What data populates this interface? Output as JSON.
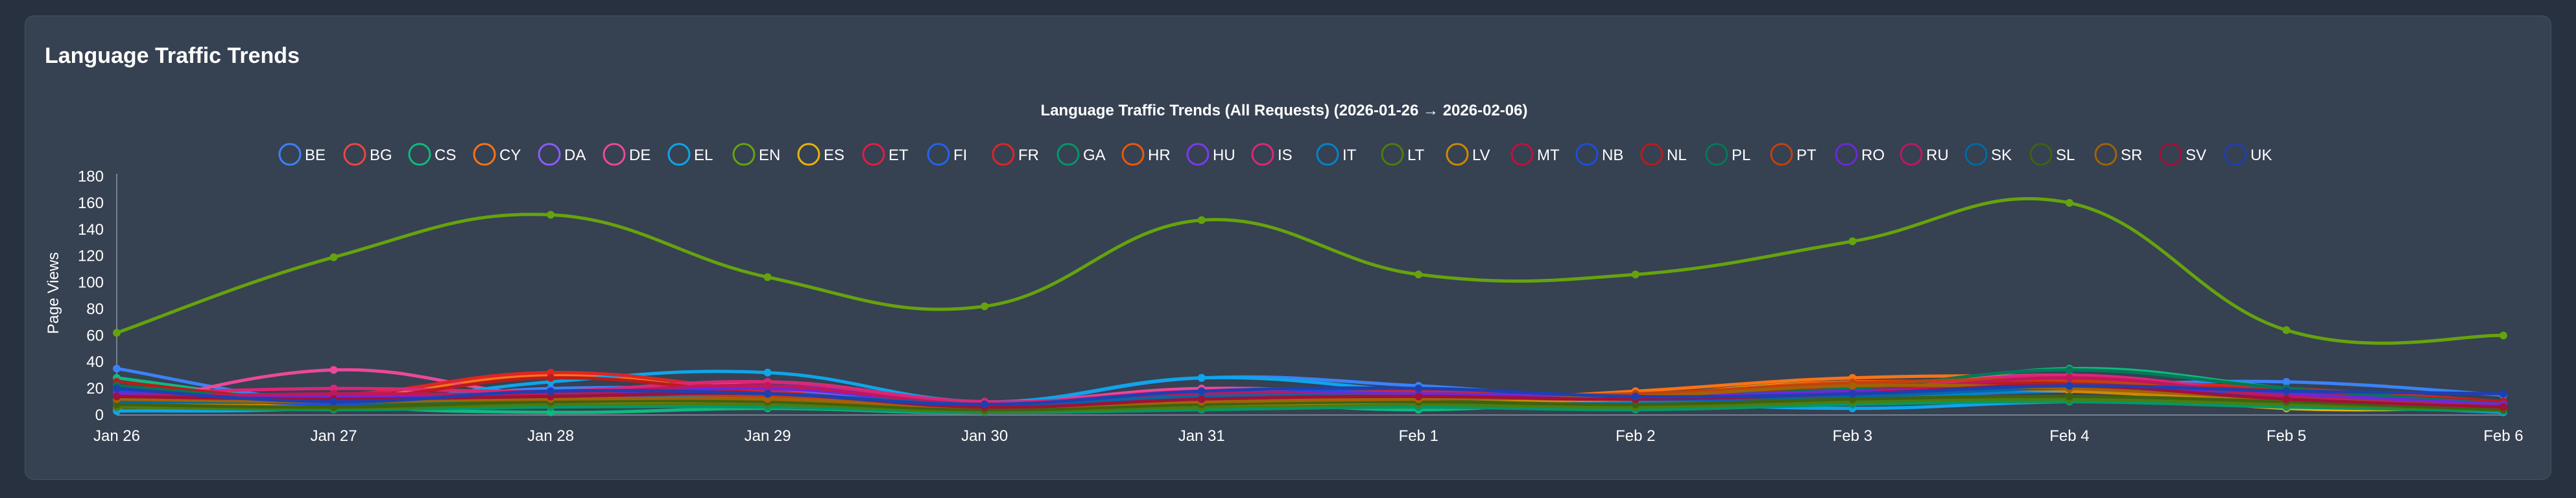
{
  "card": {
    "title": "Language Traffic Trends"
  },
  "chart_data": {
    "type": "line",
    "title": "Language Traffic Trends (All Requests) (2026-01-26 → 2026-02-06)",
    "xlabel": "",
    "ylabel": "Page Views",
    "ylim": [
      0,
      180
    ],
    "yticks": [
      0,
      20,
      40,
      60,
      80,
      100,
      120,
      140,
      160,
      180
    ],
    "grid": false,
    "legend_position": "top-center",
    "categories": [
      "Jan 26",
      "Jan 27",
      "Jan 28",
      "Jan 29",
      "Jan 30",
      "Jan 31",
      "Feb 1",
      "Feb 2",
      "Feb 3",
      "Feb 4",
      "Feb 5",
      "Feb 6"
    ],
    "series": [
      {
        "name": "BE",
        "color": "#3b82f6",
        "values": [
          35,
          10,
          20,
          18,
          8,
          28,
          22,
          12,
          18,
          22,
          25,
          15
        ]
      },
      {
        "name": "BG",
        "color": "#ef4444",
        "values": [
          10,
          8,
          12,
          6,
          5,
          10,
          8,
          6,
          10,
          12,
          8,
          4
        ]
      },
      {
        "name": "CS",
        "color": "#10b981",
        "values": [
          28,
          8,
          2,
          5,
          2,
          10,
          4,
          12,
          15,
          35,
          20,
          3
        ]
      },
      {
        "name": "CY",
        "color": "#f97316",
        "values": [
          18,
          12,
          30,
          15,
          8,
          12,
          10,
          18,
          28,
          28,
          18,
          8
        ]
      },
      {
        "name": "DA",
        "color": "#8b5cf6",
        "values": [
          12,
          10,
          15,
          20,
          6,
          14,
          12,
          10,
          12,
          18,
          12,
          6
        ]
      },
      {
        "name": "DE",
        "color": "#ec4899",
        "values": [
          5,
          34,
          15,
          25,
          10,
          20,
          15,
          10,
          20,
          30,
          15,
          5
        ]
      },
      {
        "name": "EL",
        "color": "#0ea5e9",
        "values": [
          3,
          6,
          25,
          32,
          10,
          28,
          18,
          10,
          5,
          10,
          8,
          2
        ]
      },
      {
        "name": "EN",
        "color": "#65a30d",
        "values": [
          62,
          119,
          151,
          104,
          82,
          147,
          106,
          106,
          131,
          160,
          64,
          60
        ]
      },
      {
        "name": "ES",
        "color": "#eab308",
        "values": [
          8,
          5,
          10,
          8,
          4,
          6,
          10,
          15,
          25,
          20,
          5,
          6
        ]
      },
      {
        "name": "ET",
        "color": "#e11d48",
        "values": [
          15,
          14,
          10,
          12,
          5,
          12,
          14,
          12,
          15,
          18,
          12,
          8
        ]
      },
      {
        "name": "FI",
        "color": "#2563eb",
        "values": [
          10,
          6,
          8,
          10,
          4,
          8,
          12,
          8,
          10,
          20,
          12,
          4
        ]
      },
      {
        "name": "FR",
        "color": "#dc2626",
        "values": [
          20,
          15,
          32,
          18,
          8,
          15,
          18,
          15,
          22,
          25,
          20,
          10
        ]
      },
      {
        "name": "GA",
        "color": "#059669",
        "values": [
          6,
          4,
          6,
          6,
          2,
          4,
          6,
          4,
          8,
          10,
          6,
          3
        ]
      },
      {
        "name": "HR",
        "color": "#ea580c",
        "values": [
          12,
          10,
          14,
          12,
          6,
          12,
          15,
          15,
          25,
          22,
          15,
          8
        ]
      },
      {
        "name": "HU",
        "color": "#7c3aed",
        "values": [
          14,
          12,
          12,
          22,
          8,
          15,
          16,
          12,
          18,
          20,
          15,
          6
        ]
      },
      {
        "name": "IS",
        "color": "#db2777",
        "values": [
          16,
          20,
          18,
          25,
          10,
          18,
          15,
          12,
          18,
          30,
          15,
          8
        ]
      },
      {
        "name": "IT",
        "color": "#0284c7",
        "values": [
          8,
          8,
          12,
          14,
          6,
          10,
          12,
          10,
          12,
          18,
          10,
          5
        ]
      },
      {
        "name": "LT",
        "color": "#4d7c0f",
        "values": [
          6,
          5,
          8,
          8,
          3,
          6,
          8,
          6,
          10,
          12,
          8,
          4
        ]
      },
      {
        "name": "LV",
        "color": "#ca8a04",
        "values": [
          10,
          8,
          10,
          10,
          5,
          8,
          10,
          12,
          20,
          18,
          10,
          6
        ]
      },
      {
        "name": "MT",
        "color": "#be123c",
        "values": [
          12,
          10,
          14,
          15,
          6,
          12,
          14,
          12,
          16,
          22,
          12,
          6
        ]
      },
      {
        "name": "NB",
        "color": "#1d4ed8",
        "values": [
          18,
          8,
          16,
          14,
          6,
          14,
          20,
          12,
          14,
          20,
          14,
          8
        ]
      },
      {
        "name": "NL",
        "color": "#b91c1c",
        "values": [
          25,
          12,
          28,
          16,
          8,
          14,
          16,
          14,
          20,
          24,
          18,
          10
        ]
      },
      {
        "name": "PL",
        "color": "#047857",
        "values": [
          22,
          10,
          10,
          12,
          5,
          12,
          12,
          14,
          20,
          34,
          20,
          8
        ]
      },
      {
        "name": "PT",
        "color": "#c2410c",
        "values": [
          14,
          12,
          16,
          14,
          6,
          12,
          14,
          16,
          24,
          26,
          16,
          6
        ]
      },
      {
        "name": "RO",
        "color": "#6d28d9",
        "values": [
          16,
          14,
          14,
          20,
          8,
          16,
          16,
          14,
          18,
          22,
          16,
          8
        ]
      },
      {
        "name": "RU",
        "color": "#be185d",
        "values": [
          14,
          16,
          16,
          22,
          8,
          16,
          14,
          12,
          16,
          28,
          14,
          6
        ]
      },
      {
        "name": "SK",
        "color": "#0369a1",
        "values": [
          10,
          10,
          14,
          16,
          8,
          14,
          14,
          12,
          14,
          20,
          12,
          6
        ]
      },
      {
        "name": "SL",
        "color": "#3f6212",
        "values": [
          8,
          6,
          10,
          10,
          4,
          8,
          10,
          8,
          12,
          14,
          10,
          4
        ]
      },
      {
        "name": "SR",
        "color": "#a16207",
        "values": [
          12,
          10,
          12,
          12,
          6,
          10,
          12,
          14,
          22,
          20,
          12,
          6
        ]
      },
      {
        "name": "SV",
        "color": "#9f1239",
        "values": [
          14,
          12,
          14,
          16,
          6,
          12,
          14,
          12,
          16,
          22,
          12,
          6
        ]
      },
      {
        "name": "UK",
        "color": "#1e40af",
        "values": [
          20,
          10,
          18,
          16,
          8,
          18,
          20,
          14,
          16,
          22,
          18,
          16
        ]
      }
    ]
  }
}
